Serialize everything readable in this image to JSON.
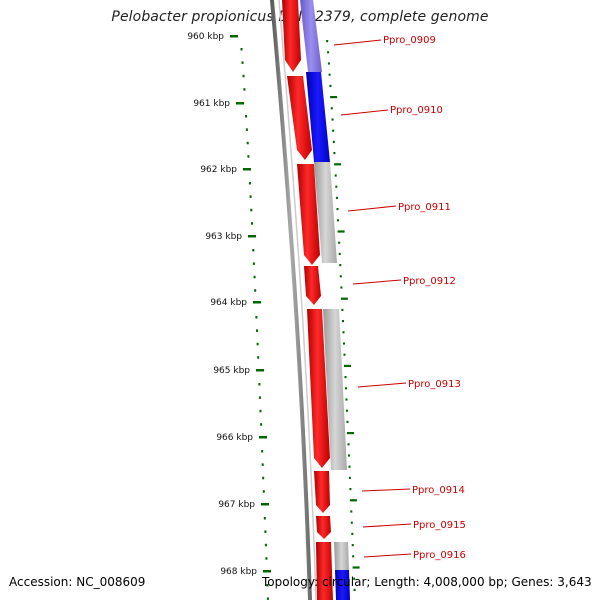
{
  "title": "Pelobacter propionicus DSM 2379, complete genome",
  "accession": "Accession: NC_008609",
  "footer": "Topology: circular; Length: 4,008,000 bp; Genes: 3,643",
  "ruler": {
    "ticks": [
      "960 kbp",
      "961 kbp",
      "962 kbp",
      "963 kbp",
      "964 kbp",
      "965 kbp",
      "966 kbp",
      "967 kbp",
      "968 kbp"
    ]
  },
  "genes": [
    {
      "label": "Ppro_0909"
    },
    {
      "label": "Ppro_0910"
    },
    {
      "label": "Ppro_0911"
    },
    {
      "label": "Ppro_0912"
    },
    {
      "label": "Ppro_0913"
    },
    {
      "label": "Ppro_0914"
    },
    {
      "label": "Ppro_0915"
    },
    {
      "label": "Ppro_0916"
    }
  ],
  "colors": {
    "cds": "#ff0000",
    "blast_high": "#0000ff",
    "blast_low": "#b0b0b0",
    "backbone": "#777777",
    "gc_skew": "#006600",
    "label": "#cc0000"
  }
}
